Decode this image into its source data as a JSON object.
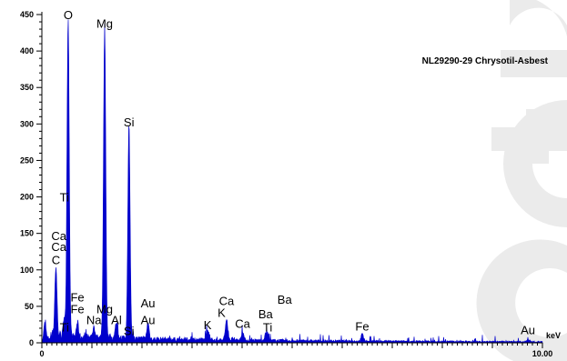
{
  "chart_data": {
    "type": "area",
    "title": "NL29290-29 Chrysotil-Asbest",
    "xlabel": "keV",
    "ylabel": "",
    "xlim": [
      0,
      10
    ],
    "ylim": [
      0,
      450
    ],
    "x_tick_labels": [
      "0",
      "10.00"
    ],
    "y_ticks": [
      0,
      50,
      100,
      150,
      200,
      250,
      300,
      350,
      400,
      450
    ],
    "series_color": "#0000cc",
    "peaks": [
      {
        "x": 0.06,
        "y": 25
      },
      {
        "x": 0.28,
        "y": 95
      },
      {
        "x": 0.45,
        "y": 25
      },
      {
        "x": 0.525,
        "y": 440
      },
      {
        "x": 0.71,
        "y": 20
      },
      {
        "x": 1.04,
        "y": 15
      },
      {
        "x": 1.254,
        "y": 428
      },
      {
        "x": 1.49,
        "y": 22
      },
      {
        "x": 1.74,
        "y": 293
      },
      {
        "x": 2.12,
        "y": 22
      },
      {
        "x": 3.31,
        "y": 15
      },
      {
        "x": 3.69,
        "y": 30
      },
      {
        "x": 4.01,
        "y": 12
      },
      {
        "x": 4.51,
        "y": 8
      },
      {
        "x": 4.47,
        "y": 8
      },
      {
        "x": 6.4,
        "y": 10
      },
      {
        "x": 9.71,
        "y": 3
      }
    ],
    "peak_labels": [
      {
        "text": "O",
        "x": 0.525,
        "y": 440
      },
      {
        "text": "Mg",
        "x": 1.254,
        "y": 428
      },
      {
        "text": "Si",
        "x": 1.74,
        "y": 293
      },
      {
        "text": "Ti",
        "x": 0.45,
        "y": 190
      },
      {
        "text": "Ca",
        "x": 0.34,
        "y": 137
      },
      {
        "text": "Ca",
        "x": 0.34,
        "y": 122
      },
      {
        "text": "C",
        "x": 0.28,
        "y": 104
      },
      {
        "text": "Fe",
        "x": 0.71,
        "y": 53
      },
      {
        "text": "Fe",
        "x": 0.71,
        "y": 37
      },
      {
        "text": "Ti",
        "x": 0.45,
        "y": 12
      },
      {
        "text": "Na",
        "x": 1.04,
        "y": 22
      },
      {
        "text": "Mg",
        "x": 1.254,
        "y": 37
      },
      {
        "text": "Al",
        "x": 1.49,
        "y": 22
      },
      {
        "text": "Si",
        "x": 1.74,
        "y": 7
      },
      {
        "text": "Au",
        "x": 2.12,
        "y": 45
      },
      {
        "text": "Au",
        "x": 2.12,
        "y": 22
      },
      {
        "text": "K",
        "x": 3.31,
        "y": 15
      },
      {
        "text": "Ca",
        "x": 3.69,
        "y": 48
      },
      {
        "text": "K",
        "x": 3.59,
        "y": 32
      },
      {
        "text": "Ca",
        "x": 4.01,
        "y": 17
      },
      {
        "text": "Ba",
        "x": 4.47,
        "y": 30
      },
      {
        "text": "Ti",
        "x": 4.51,
        "y": 12
      },
      {
        "text": "Ba",
        "x": 4.85,
        "y": 50
      },
      {
        "text": "Fe",
        "x": 6.4,
        "y": 13
      },
      {
        "text": "Au",
        "x": 9.71,
        "y": 8
      }
    ]
  }
}
